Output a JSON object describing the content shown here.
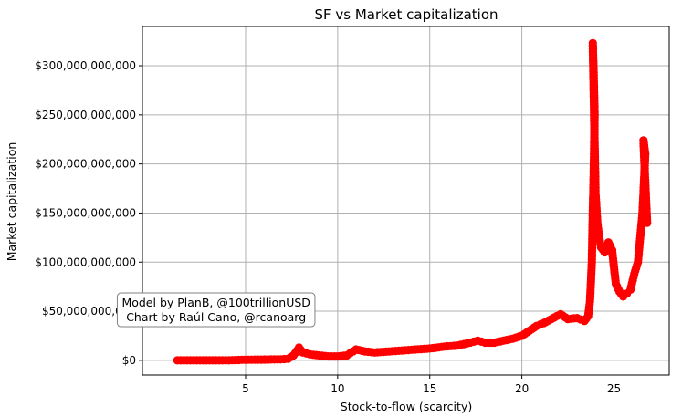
{
  "chart_data": {
    "type": "scatter",
    "title": "SF vs Market capitalization",
    "xlabel": "Stock-to-flow (scarcity)",
    "ylabel": "Market capitalization",
    "xlim": [
      -0.6,
      28.0
    ],
    "ylim": [
      -15000000000,
      340000000000
    ],
    "x_ticks": [
      5,
      10,
      15,
      20,
      25
    ],
    "x_tick_labels": [
      "5",
      "10",
      "15",
      "20",
      "25"
    ],
    "y_ticks": [
      0,
      50000000000,
      100000000000,
      150000000000,
      200000000000,
      250000000000,
      300000000000
    ],
    "y_tick_labels": [
      "$0",
      "$50,000,000,000",
      "$100,000,000,000",
      "$150,000,000,000",
      "$200,000,000,000",
      "$250,000,000,000",
      "$300,000,000,000"
    ],
    "grid": true,
    "marker_color": "#ff0000",
    "annotation": {
      "lines": [
        "Model by PlanB, @100trillionUSD",
        "Chart by Raúl Cano, @rcanoarg"
      ],
      "anchor_xy": [
        3.4,
        50000000000
      ]
    },
    "points": [
      [
        1.3,
        0
      ],
      [
        2.0,
        0
      ],
      [
        2.7,
        0
      ],
      [
        3.4,
        0
      ],
      [
        4.1,
        0
      ],
      [
        4.8,
        500000000
      ],
      [
        5.5,
        700000000
      ],
      [
        6.2,
        800000000
      ],
      [
        6.9,
        1000000000
      ],
      [
        7.3,
        1500000000
      ],
      [
        7.6,
        5000000000
      ],
      [
        7.8,
        10000000000
      ],
      [
        7.9,
        13000000000
      ],
      [
        8.1,
        8000000000
      ],
      [
        8.5,
        6000000000
      ],
      [
        9.0,
        5000000000
      ],
      [
        9.5,
        4000000000
      ],
      [
        10.0,
        4000000000
      ],
      [
        10.5,
        5000000000
      ],
      [
        11.0,
        11000000000
      ],
      [
        11.5,
        9000000000
      ],
      [
        12.0,
        8000000000
      ],
      [
        12.8,
        9000000000
      ],
      [
        13.5,
        10000000000
      ],
      [
        14.2,
        11000000000
      ],
      [
        15.0,
        12000000000
      ],
      [
        15.8,
        14000000000
      ],
      [
        16.5,
        15000000000
      ],
      [
        17.2,
        18000000000
      ],
      [
        17.6,
        20000000000
      ],
      [
        18.0,
        18000000000
      ],
      [
        18.5,
        18000000000
      ],
      [
        19.0,
        20000000000
      ],
      [
        19.5,
        22000000000
      ],
      [
        20.0,
        25000000000
      ],
      [
        20.4,
        30000000000
      ],
      [
        20.8,
        35000000000
      ],
      [
        21.2,
        38000000000
      ],
      [
        21.6,
        42000000000
      ],
      [
        21.9,
        45000000000
      ],
      [
        22.1,
        47000000000
      ],
      [
        22.5,
        42000000000
      ],
      [
        23.0,
        43000000000
      ],
      [
        23.4,
        40000000000
      ],
      [
        23.6,
        45000000000
      ],
      [
        23.7,
        60000000000
      ],
      [
        23.8,
        100000000000
      ],
      [
        23.85,
        150000000000
      ],
      [
        23.9,
        190000000000
      ],
      [
        23.95,
        250000000000
      ],
      [
        23.9,
        290000000000
      ],
      [
        23.85,
        323000000000
      ],
      [
        24.0,
        170000000000
      ],
      [
        24.1,
        140000000000
      ],
      [
        24.2,
        125000000000
      ],
      [
        24.3,
        115000000000
      ],
      [
        24.5,
        110000000000
      ],
      [
        24.7,
        120000000000
      ],
      [
        24.9,
        112000000000
      ],
      [
        25.1,
        78000000000
      ],
      [
        25.3,
        70000000000
      ],
      [
        25.5,
        65000000000
      ],
      [
        25.7,
        68000000000
      ],
      [
        25.9,
        72000000000
      ],
      [
        26.1,
        88000000000
      ],
      [
        26.3,
        100000000000
      ],
      [
        26.45,
        130000000000
      ],
      [
        26.55,
        150000000000
      ],
      [
        26.6,
        170000000000
      ],
      [
        26.65,
        190000000000
      ],
      [
        26.7,
        210000000000
      ],
      [
        26.6,
        224000000000
      ],
      [
        26.75,
        160000000000
      ],
      [
        26.8,
        140000000000
      ]
    ]
  }
}
